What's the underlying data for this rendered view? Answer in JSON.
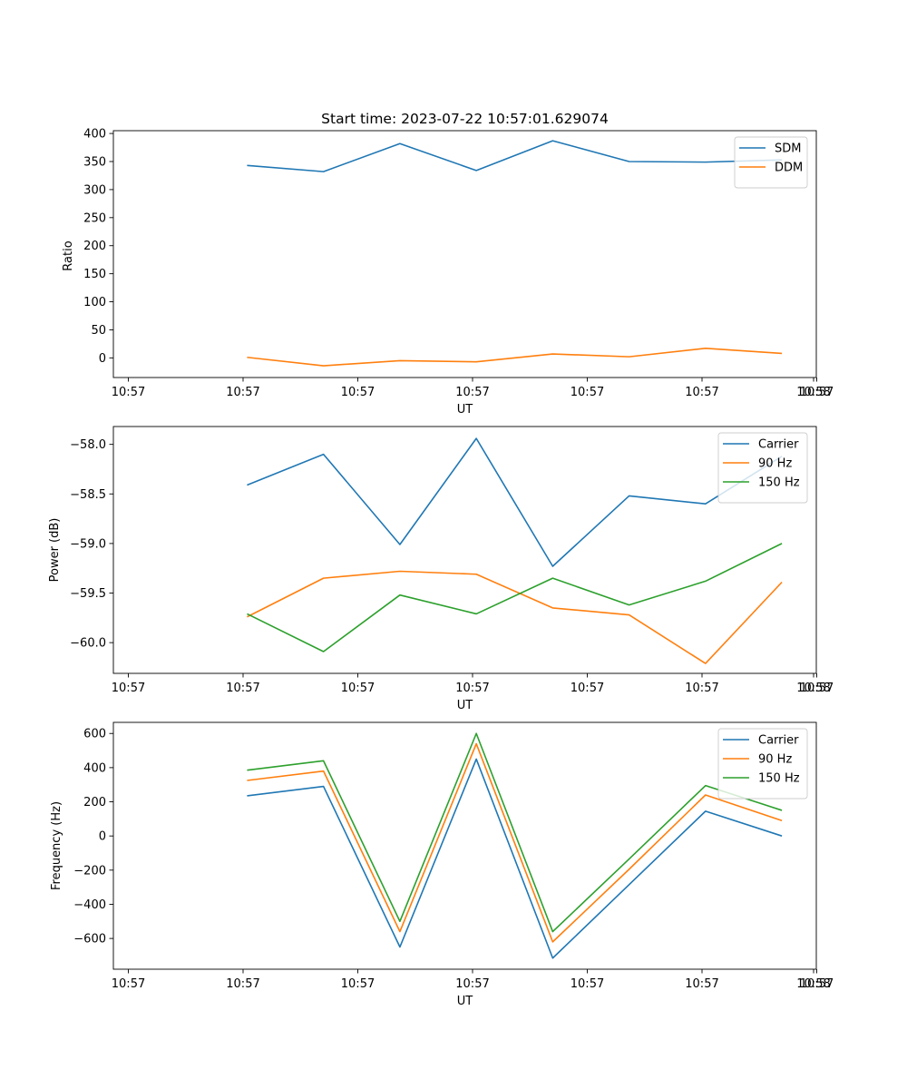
{
  "figure_title": "Start time: 2023-07-22 10:57:01.629074",
  "colors": {
    "blue": "#1f77b4",
    "orange": "#ff7f0e",
    "green": "#2ca02c"
  },
  "chart_data": [
    {
      "type": "line",
      "title": "Start time: 2023-07-22 10:57:01.629074",
      "xlabel": "UT",
      "ylabel": "Ratio",
      "x_tick_labels": [
        "10:57",
        "10:57",
        "10:57",
        "10:57",
        "10:57",
        "10:57",
        "10:57"
      ],
      "x_last_tick_label": "10:58",
      "y_ticks": [
        0,
        50,
        100,
        150,
        200,
        250,
        300,
        350,
        400
      ],
      "ylim": [
        -35,
        405
      ],
      "xlim": [
        -0.75,
        8.45
      ],
      "x": [
        1,
        2,
        3,
        4,
        5,
        6,
        7,
        8
      ],
      "legend_position": "top-right",
      "series": [
        {
          "name": "SDM",
          "color": "#1f77b4",
          "values": [
            343,
            332,
            382,
            334,
            387,
            350,
            349,
            353
          ]
        },
        {
          "name": "DDM",
          "color": "#ff7f0e",
          "values": [
            1,
            -14,
            -5,
            -7,
            7,
            2,
            17,
            8
          ]
        }
      ]
    },
    {
      "type": "line",
      "title": "",
      "xlabel": "UT",
      "ylabel": "Power (dB)",
      "x_tick_labels": [
        "10:57",
        "10:57",
        "10:57",
        "10:57",
        "10:57",
        "10:57",
        "10:57"
      ],
      "x_last_tick_label": "10:58",
      "y_ticks": [
        -60.0,
        -59.5,
        -59.0,
        -58.5,
        -58.0
      ],
      "y_tick_labels": [
        "−60.0",
        "−59.5",
        "−59.0",
        "−58.5",
        "−58.0"
      ],
      "ylim": [
        -60.31,
        -57.82
      ],
      "xlim": [
        -0.75,
        8.45
      ],
      "x": [
        1,
        2,
        3,
        4,
        5,
        6,
        7,
        8
      ],
      "legend_position": "top-right",
      "series": [
        {
          "name": "Carrier",
          "color": "#1f77b4",
          "values": [
            -58.41,
            -58.1,
            -59.01,
            -57.94,
            -59.23,
            -58.52,
            -58.6,
            -58.12
          ]
        },
        {
          "name": "90 Hz",
          "color": "#ff7f0e",
          "values": [
            -59.74,
            -59.35,
            -59.28,
            -59.31,
            -59.65,
            -59.72,
            -60.21,
            -59.39
          ]
        },
        {
          "name": "150 Hz",
          "color": "#2ca02c",
          "values": [
            -59.71,
            -60.09,
            -59.52,
            -59.71,
            -59.35,
            -59.62,
            -59.38,
            -59.0
          ]
        }
      ]
    },
    {
      "type": "line",
      "title": "",
      "xlabel": "UT",
      "ylabel": "Frequency (Hz)",
      "x_tick_labels": [
        "10:57",
        "10:57",
        "10:57",
        "10:57",
        "10:57",
        "10:57",
        "10:57"
      ],
      "x_last_tick_label": "10:58",
      "y_ticks": [
        -600,
        -400,
        -200,
        0,
        200,
        400,
        600
      ],
      "y_tick_labels": [
        "−600",
        "−400",
        "−200",
        "0",
        "200",
        "400",
        "600"
      ],
      "ylim": [
        -780,
        665
      ],
      "xlim": [
        -0.75,
        8.45
      ],
      "x": [
        1,
        2,
        3,
        4,
        5,
        6,
        7,
        8
      ],
      "legend_position": "top-right",
      "series": [
        {
          "name": "Carrier",
          "color": "#1f77b4",
          "values": [
            235,
            290,
            -650,
            450,
            -715,
            -285,
            145,
            0
          ]
        },
        {
          "name": "90 Hz",
          "color": "#ff7f0e",
          "values": [
            325,
            380,
            -560,
            540,
            -620,
            -195,
            240,
            90
          ]
        },
        {
          "name": "150 Hz",
          "color": "#2ca02c",
          "values": [
            385,
            440,
            -500,
            600,
            -560,
            -135,
            295,
            150
          ]
        }
      ]
    }
  ]
}
